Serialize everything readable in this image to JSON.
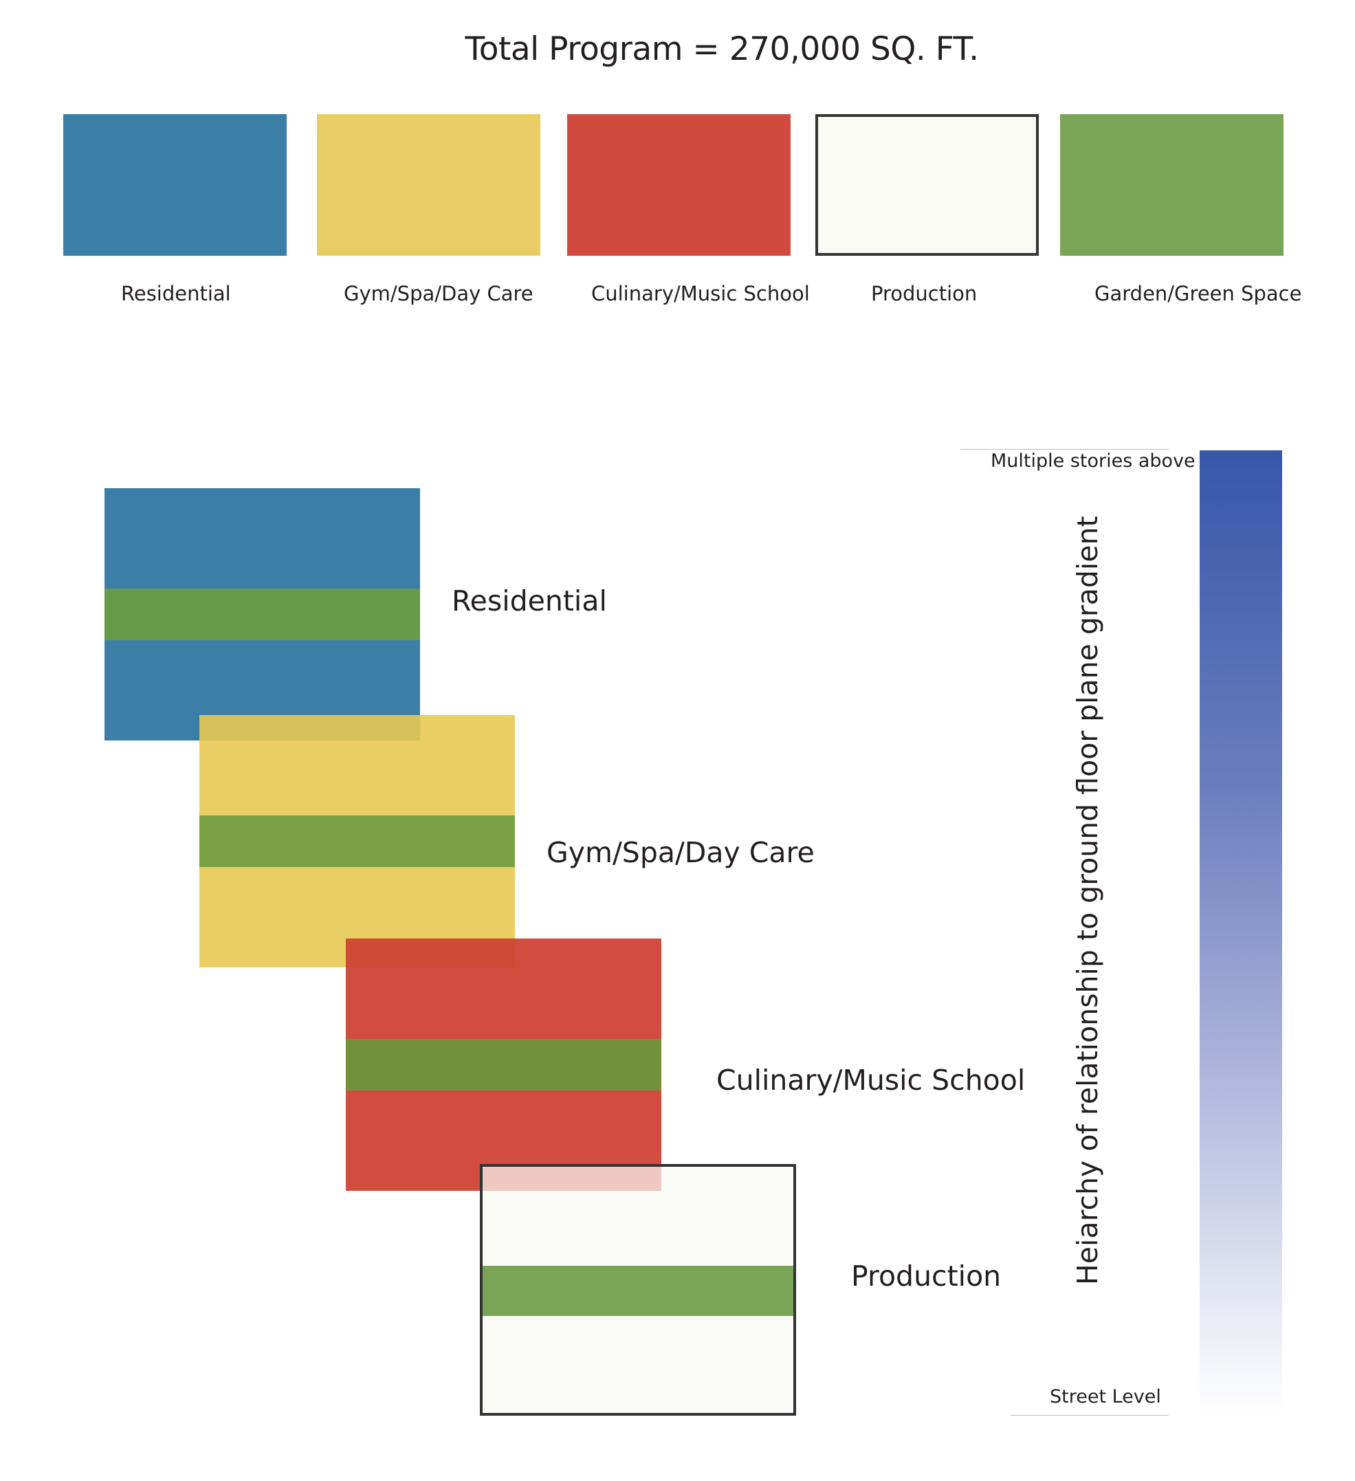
{
  "title": "Total Program = 270,000 SQ. FT.",
  "colors": {
    "residential": "#3b7fa6",
    "gym": "#e8cd64",
    "culinary": "#d04b3f",
    "production": "#fafaf5",
    "garden": "#7aa556",
    "border": "#333333",
    "gradient_top": "#3657aa",
    "gradient_bottom": "#ffffff"
  },
  "legend": [
    {
      "label": "Residential"
    },
    {
      "label": "Gym/Spa/Day Care"
    },
    {
      "label": "Culinary/Music School"
    },
    {
      "label": "Production"
    },
    {
      "label": "Garden/Green Space"
    }
  ],
  "blocks": [
    {
      "label": "Residential"
    },
    {
      "label": "Gym/Spa/Day Care"
    },
    {
      "label": "Culinary/Music School"
    },
    {
      "label": "Production"
    }
  ],
  "scale": {
    "top_label": "Multiple stories above",
    "bottom_label": "Street Level",
    "axis_title": "Heiarchy of relationship to ground floor plane gradient"
  }
}
